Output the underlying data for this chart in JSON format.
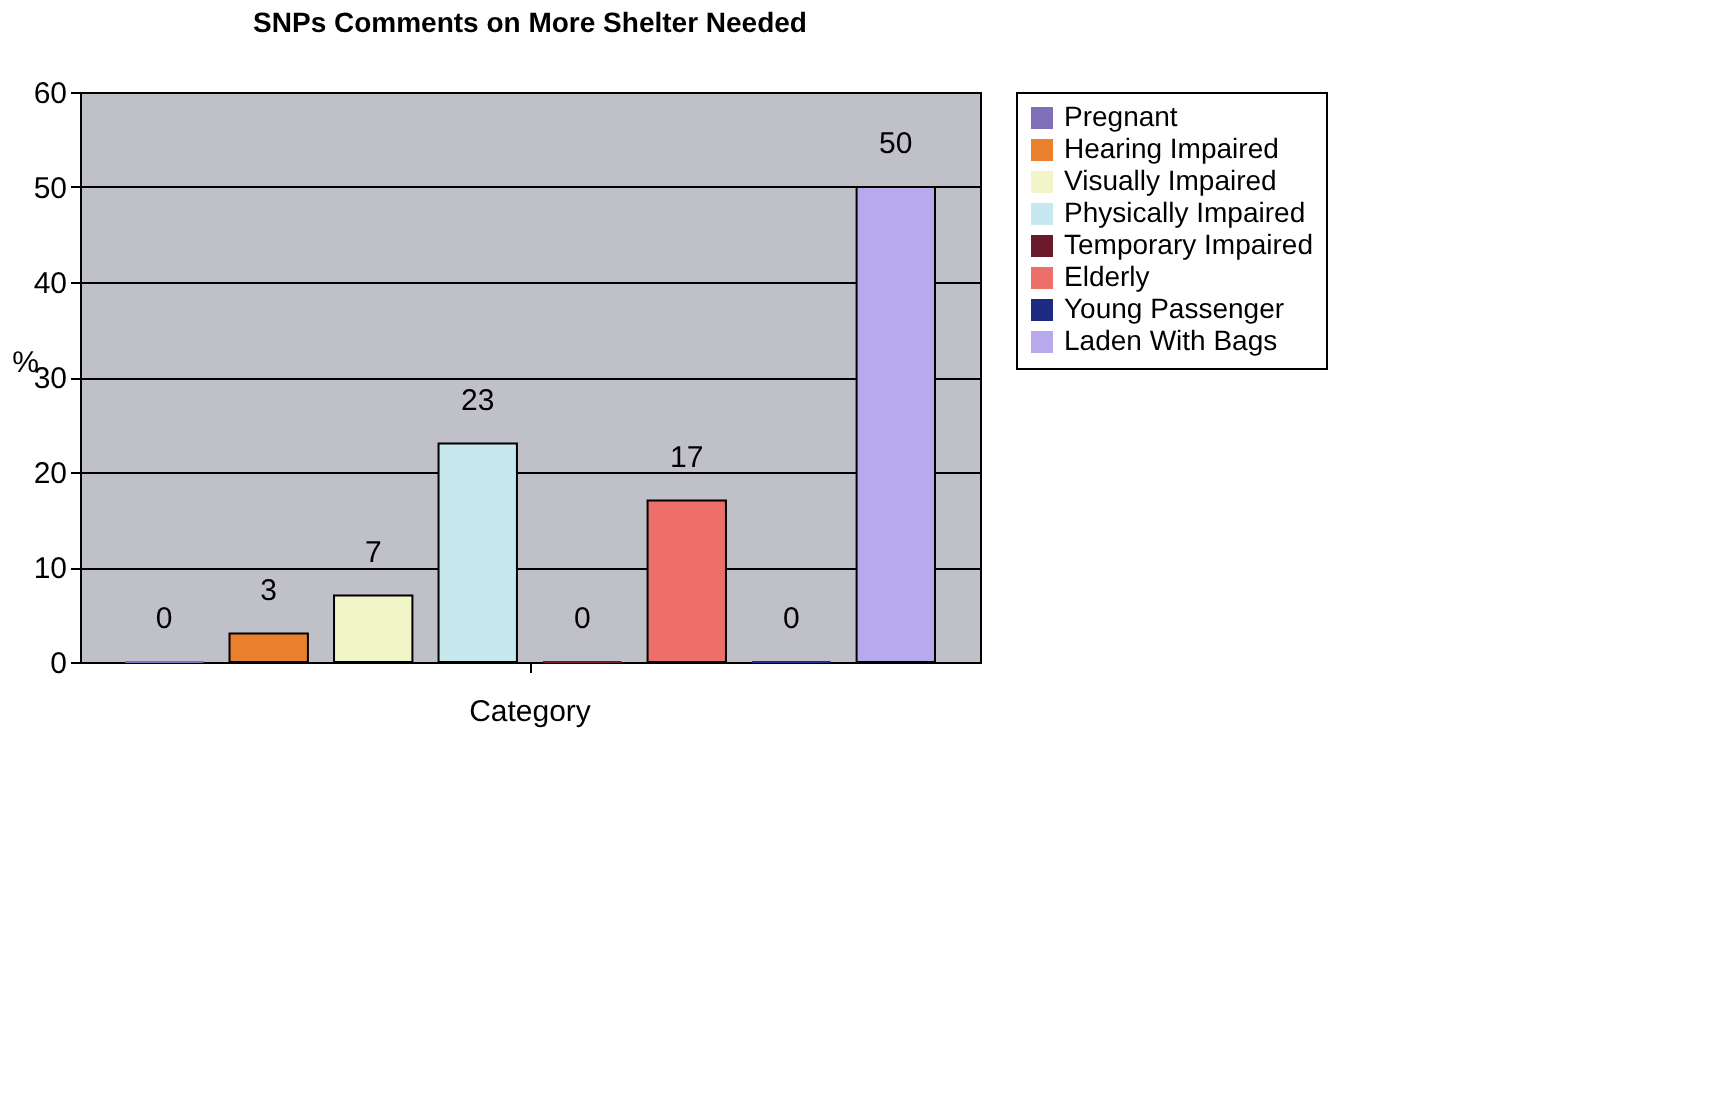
{
  "chart_data": {
    "type": "bar",
    "title": "SNPs Comments on More Shelter Needed",
    "ylabel": "%",
    "categories": [
      "Category"
    ],
    "series": [
      {
        "name": "Pregnant",
        "color": "#7f6fb8",
        "values": [
          0
        ]
      },
      {
        "name": "Hearing Impaired",
        "color": "#e8802e",
        "values": [
          3
        ]
      },
      {
        "name": "Visually Impaired",
        "color": "#f2f5c8",
        "values": [
          7
        ]
      },
      {
        "name": "Physically Impaired",
        "color": "#c8e8f0",
        "values": [
          23
        ]
      },
      {
        "name": "Temporary Impaired",
        "color": "#6a1a2a",
        "values": [
          0
        ]
      },
      {
        "name": "Elderly",
        "color": "#ee6e6a",
        "values": [
          17
        ]
      },
      {
        "name": "Young Passenger",
        "color": "#1e2a80",
        "values": [
          0
        ]
      },
      {
        "name": "Laden With Bags",
        "color": "#b8a8ec",
        "values": [
          50
        ]
      }
    ],
    "ylim": [
      0,
      60
    ],
    "yticks": [
      0,
      10,
      20,
      30,
      40,
      50,
      60
    ],
    "grid": "y",
    "legend": "right",
    "data_labels": true
  }
}
